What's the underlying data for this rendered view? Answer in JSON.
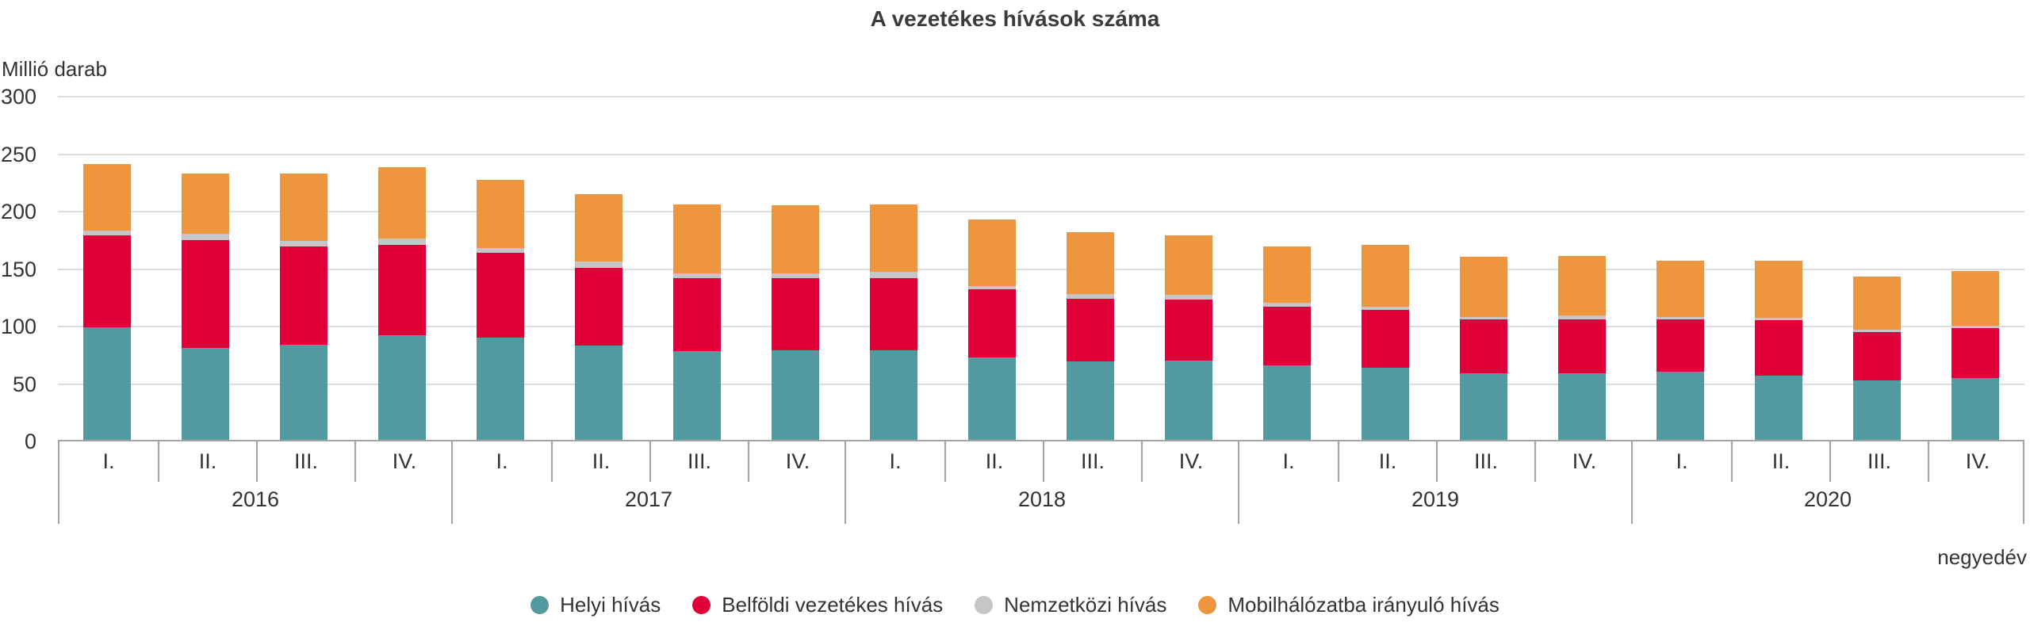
{
  "title": "A vezetékes hívások száma",
  "y_axis": {
    "unit_label": "Millió darab",
    "ticks": [
      0,
      50,
      100,
      150,
      200,
      250,
      300
    ],
    "max": 300
  },
  "x_axis": {
    "unit_label": "negyedév",
    "quarter_labels": [
      "I.",
      "II.",
      "III.",
      "IV."
    ],
    "years": [
      "2016",
      "2017",
      "2018",
      "2019",
      "2020"
    ]
  },
  "colors": {
    "helyi": "#529aa0",
    "belfoldi": "#e00037",
    "nemzetkozi": "#c6c6c6",
    "mobil": "#f0953f",
    "gridline": "#dddddd",
    "axis": "#a3a3a3",
    "text": "#333333"
  },
  "chart_data": {
    "type": "bar",
    "stacked": true,
    "title": "A vezetékes hívások száma",
    "ylabel": "Millió darab",
    "xlabel": "negyedév",
    "ylim": [
      0,
      300
    ],
    "grid": true,
    "legend_position": "bottom",
    "categories": [
      "2016 I.",
      "2016 II.",
      "2016 III.",
      "2016 IV.",
      "2017 I.",
      "2017 II.",
      "2017 III.",
      "2017 IV.",
      "2018 I.",
      "2018 II.",
      "2018 III.",
      "2018 IV.",
      "2019 I.",
      "2019 II.",
      "2019 III.",
      "2019 IV.",
      "2020 I.",
      "2020 II.",
      "2020 III.",
      "2020 IV."
    ],
    "series": [
      {
        "name": "Helyi hívás",
        "color": "#529aa0",
        "values": [
          98,
          80,
          83,
          91,
          89,
          82,
          77,
          78,
          78,
          72,
          68,
          69,
          65,
          63,
          58,
          58,
          59,
          56,
          52,
          54
        ]
      },
      {
        "name": "Belföldi vezetékes hívás",
        "color": "#e00037",
        "values": [
          80,
          94,
          85,
          79,
          74,
          68,
          64,
          63,
          63,
          59,
          55,
          53,
          51,
          50,
          47,
          47,
          46,
          48,
          42,
          43
        ]
      },
      {
        "name": "Nemzetközi hívás",
        "color": "#c6c6c6",
        "values": [
          4,
          5,
          5,
          5,
          4,
          5,
          4,
          4,
          5,
          3,
          4,
          4,
          3,
          3,
          2,
          3,
          2,
          2,
          2,
          2
        ]
      },
      {
        "name": "Mobilhálózatba irányuló hívás",
        "color": "#f0953f",
        "values": [
          58,
          53,
          59,
          62,
          59,
          59,
          60,
          59,
          59,
          58,
          54,
          52,
          49,
          54,
          52,
          52,
          49,
          50,
          46,
          48
        ]
      }
    ]
  }
}
